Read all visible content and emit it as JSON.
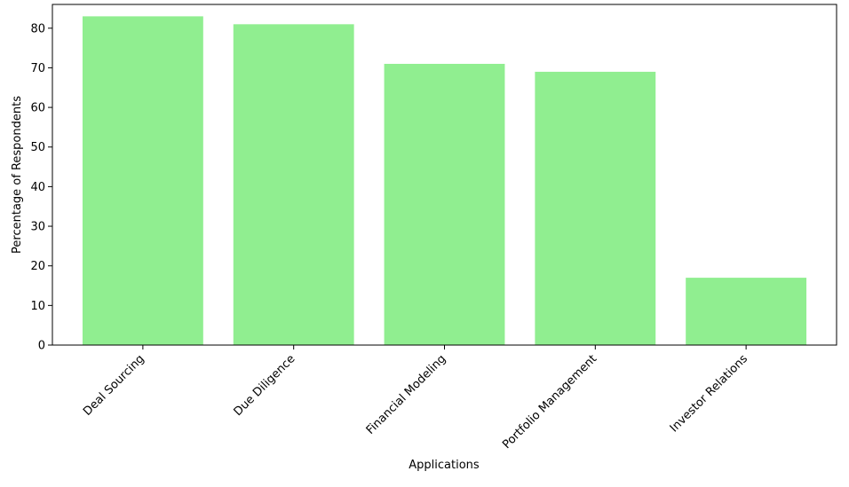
{
  "chart_data": {
    "type": "bar",
    "title": "",
    "xlabel": "Applications",
    "ylabel": "Percentage of Respondents",
    "categories": [
      "Deal Sourcing",
      "Due Diligence",
      "Financial Modeling",
      "Portfolio Management",
      "Investor Relations"
    ],
    "values": [
      83,
      81,
      71,
      69,
      17
    ],
    "ylim": [
      0,
      86
    ],
    "yticks": [
      0,
      10,
      20,
      30,
      40,
      50,
      60,
      70,
      80
    ],
    "bar_color": "#90ee90",
    "grid": false,
    "legend": "none"
  }
}
